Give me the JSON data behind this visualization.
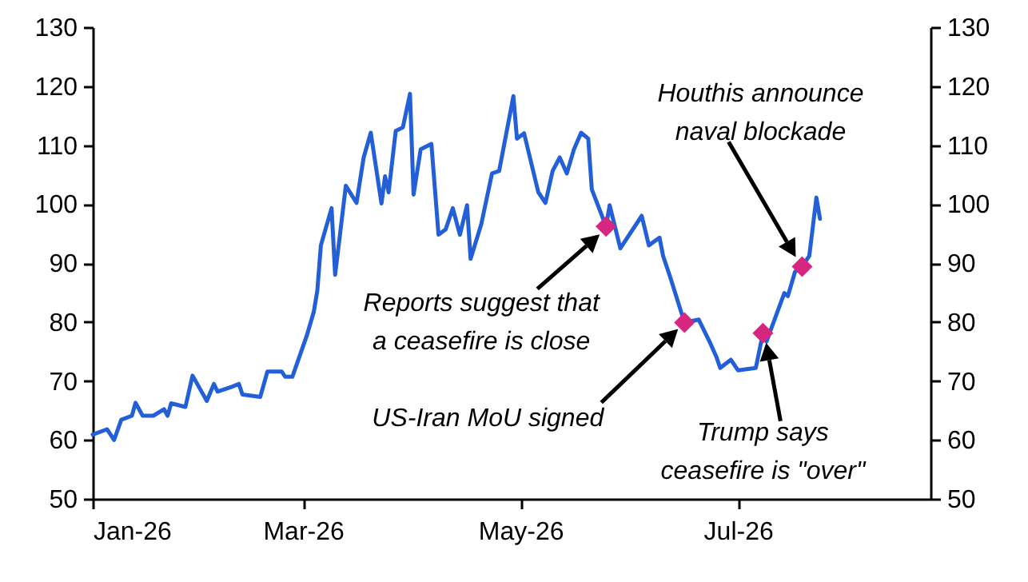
{
  "chart_data": {
    "type": "line",
    "x": [
      "2026-01-01",
      "2026-01-05",
      "2026-01-07",
      "2026-01-09",
      "2026-01-12",
      "2026-01-13",
      "2026-01-15",
      "2026-01-18",
      "2026-01-21",
      "2026-01-22",
      "2026-01-23",
      "2026-01-25",
      "2026-01-27",
      "2026-01-29",
      "2026-02-02",
      "2026-02-04",
      "2026-02-05",
      "2026-02-09",
      "2026-02-11",
      "2026-02-12",
      "2026-02-17",
      "2026-02-19",
      "2026-02-23",
      "2026-02-24",
      "2026-02-26",
      "2026-03-02",
      "2026-03-04",
      "2026-03-05",
      "2026-03-06",
      "2026-03-09",
      "2026-03-10",
      "2026-03-13",
      "2026-03-16",
      "2026-03-18",
      "2026-03-20",
      "2026-03-23",
      "2026-03-24",
      "2026-03-25",
      "2026-03-27",
      "2026-03-29",
      "2026-03-31",
      "2026-04-01",
      "2026-04-03",
      "2026-04-06",
      "2026-04-08",
      "2026-04-10",
      "2026-04-12",
      "2026-04-14",
      "2026-04-16",
      "2026-04-17",
      "2026-04-20",
      "2026-04-23",
      "2026-04-25",
      "2026-04-29",
      "2026-04-30",
      "2026-05-02",
      "2026-05-06",
      "2026-05-08",
      "2026-05-10",
      "2026-05-12",
      "2026-05-14",
      "2026-05-16",
      "2026-05-18",
      "2026-05-20",
      "2026-05-21",
      "2026-05-25",
      "2026-05-26",
      "2026-05-29",
      "2026-06-04",
      "2026-06-06",
      "2026-06-09",
      "2026-06-10",
      "2026-06-12",
      "2026-06-16",
      "2026-06-20",
      "2026-06-23",
      "2026-06-25",
      "2026-06-26",
      "2026-06-29",
      "2026-07-01",
      "2026-07-06",
      "2026-07-08",
      "2026-07-09",
      "2026-07-14",
      "2026-07-15",
      "2026-07-17",
      "2026-07-19",
      "2026-07-21",
      "2026-07-23",
      "2026-07-24"
    ],
    "series": [
      {
        "color": "#2360d8",
        "values": [
          60.9,
          61.8,
          60.0,
          63.4,
          64.1,
          66.3,
          64.1,
          64.1,
          65.2,
          64.1,
          66.2,
          65.9,
          65.6,
          70.9,
          66.6,
          69.5,
          68.2,
          69.0,
          69.5,
          67.7,
          67.3,
          71.6,
          71.6,
          70.7,
          70.7,
          77.6,
          81.7,
          85.3,
          93.0,
          99.3,
          88.0,
          103.1,
          100.2,
          107.9,
          112.1,
          100.1,
          104.7,
          102.0,
          112.4,
          113.0,
          118.7,
          101.6,
          109.3,
          110.2,
          94.8,
          95.7,
          99.3,
          94.8,
          99.8,
          90.7,
          96.6,
          105.2,
          105.6,
          118.3,
          111.1,
          112.0,
          102.0,
          100.2,
          105.6,
          107.9,
          105.2,
          109.3,
          112.1,
          111.1,
          102.5,
          96.2,
          99.8,
          92.5,
          98.0,
          93.0,
          94.3,
          91.2,
          87.6,
          79.9,
          80.4,
          76.7,
          74.0,
          72.2,
          73.6,
          71.8,
          72.2,
          78.1,
          76.7,
          84.9,
          84.4,
          88.5,
          89.4,
          91.2,
          101.1,
          97.5
        ]
      },
      {
        "type": "scatter",
        "color": "#d6267f",
        "marker": "diamond",
        "x": [
          "2026-05-25",
          "2026-06-16",
          "2026-07-08",
          "2026-07-19"
        ],
        "values": [
          96.2,
          79.9,
          78.1,
          89.4
        ]
      }
    ],
    "xlim": [
      "2026-01-01",
      "2026-08-24"
    ],
    "xticks": [
      {
        "value": "2026-01-01",
        "label": "Jan-26"
      },
      {
        "value": "2026-03-01",
        "label": "Mar-26"
      },
      {
        "value": "2026-05-01",
        "label": "May-26"
      },
      {
        "value": "2026-07-01",
        "label": "Jul-26"
      }
    ],
    "ylim": [
      50,
      130
    ],
    "yticks": [
      50,
      60,
      70,
      80,
      90,
      100,
      110,
      120,
      130
    ],
    "y2lim": [
      50,
      130
    ],
    "y2ticks": [
      50,
      60,
      70,
      80,
      90,
      100,
      110,
      120,
      130
    ],
    "annotations": [
      "Reports suggest that\na ceasefire is close",
      "US-Iran MoU signed",
      "Trump says\nceasefire is \"over\"",
      "Houthis announce\nnaval blockade"
    ],
    "grid": false
  }
}
